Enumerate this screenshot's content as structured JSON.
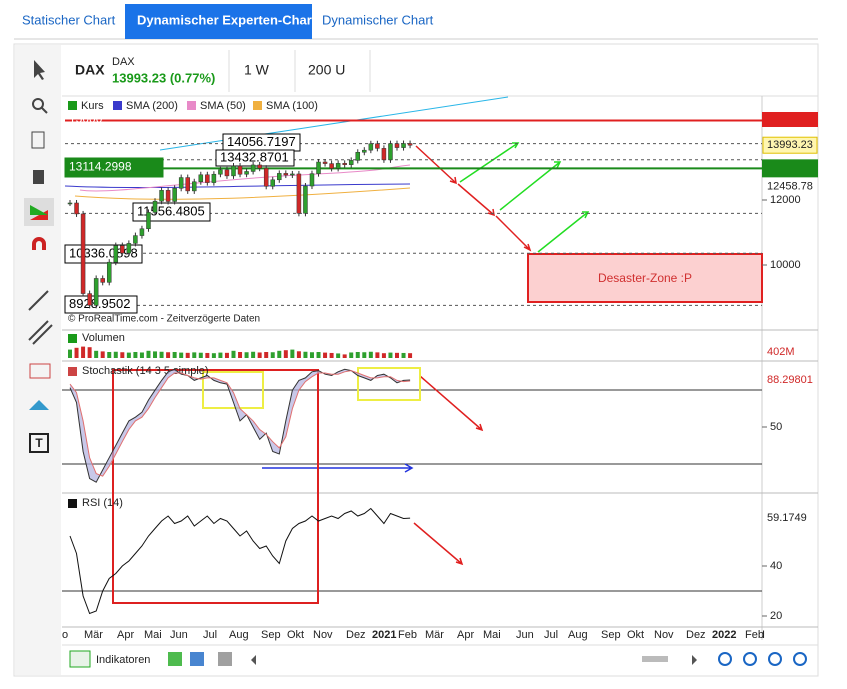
{
  "tabs": [
    "Statischer Chart",
    "Dynamischer Experten-Chart",
    "Dynamischer Chart"
  ],
  "header": {
    "symbol": "DAX",
    "name": "DAX",
    "quote": "13993.23 (0.77%)",
    "period": "1 W",
    "units": "200 U"
  },
  "price_panel": {
    "legend": [
      "Kurs",
      "SMA (200)",
      "SMA (50)",
      "SMA (100)"
    ],
    "log_scale": true,
    "yticks": [
      10000,
      12000
    ],
    "levels": [
      "15000",
      "14056.7197",
      "13432.8701",
      "13114.2998",
      "11556.4805",
      "10336.0898",
      "8928.9502"
    ],
    "right_labels": [
      "13993.23",
      "12458.78"
    ],
    "closes": [
      11900,
      11540,
      9230,
      8930,
      9630,
      9525,
      10080,
      10560,
      10340,
      10625,
      10860,
      11070,
      11590,
      11960,
      12330,
      11950,
      12400,
      12780,
      12310,
      12630,
      12880,
      12600,
      12900,
      13060,
      12840,
      13200,
      12900,
      13000,
      13240,
      13120,
      12470,
      12700,
      12930,
      12870,
      12910,
      11560,
      12480,
      12920,
      13350,
      13290,
      13110,
      13300,
      13250,
      13410,
      13720,
      13800,
      14050,
      13870,
      13430,
      14056,
      13900,
      14060,
      13993
    ],
    "annotation": "Desaster-Zone :P",
    "credit": "© ProRealTime.com - Zeitverzögerte Daten"
  },
  "volume_panel": {
    "title": "Volumen",
    "last": "402M",
    "values": [
      700,
      850,
      950,
      900,
      600,
      550,
      500,
      520,
      480,
      450,
      500,
      460,
      600,
      550,
      520,
      480,
      500,
      450,
      430,
      470,
      440,
      420,
      400,
      450,
      430,
      600,
      500,
      480,
      520,
      460,
      500,
      480,
      600,
      650,
      700,
      560,
      520,
      480,
      500,
      450,
      420,
      380,
      300,
      460,
      500,
      480,
      520,
      470,
      400,
      450,
      430,
      420,
      402
    ]
  },
  "stoch_panel": {
    "title": "Stochastik (14 3 5 simple)",
    "last": "88.29801",
    "yticks": [
      50
    ],
    "k": [
      82,
      70,
      30,
      8,
      5,
      15,
      25,
      35,
      45,
      55,
      58,
      62,
      72,
      80,
      88,
      95,
      97,
      93,
      92,
      88,
      90,
      92,
      88,
      86,
      85,
      70,
      55,
      60,
      50,
      40,
      45,
      30,
      28,
      55,
      80,
      88,
      90,
      95,
      96,
      93,
      92,
      95,
      97,
      96,
      92,
      90,
      88,
      92,
      93,
      90,
      86,
      88,
      88.3
    ],
    "d": [
      85,
      78,
      55,
      25,
      12,
      10,
      18,
      28,
      38,
      48,
      55,
      58,
      65,
      74,
      82,
      90,
      94,
      94,
      92,
      90,
      89,
      90,
      90,
      88,
      86,
      78,
      65,
      60,
      55,
      48,
      44,
      38,
      33,
      42,
      65,
      80,
      87,
      91,
      94,
      94,
      93,
      93,
      95,
      96,
      94,
      92,
      90,
      90,
      91,
      91,
      88,
      87,
      87.5
    ]
  },
  "rsi_panel": {
    "title": "RSI (14)",
    "last": "59.1749",
    "yticks": [
      40,
      20
    ],
    "values": [
      52,
      45,
      28,
      21,
      22,
      30,
      35,
      37,
      40,
      42,
      45,
      48,
      52,
      55,
      58,
      60,
      57,
      58,
      60,
      56,
      58,
      60,
      57,
      59,
      58,
      55,
      52,
      54,
      50,
      47,
      48,
      44,
      41,
      50,
      55,
      57,
      58,
      60,
      58,
      59,
      60,
      59,
      61,
      62,
      60,
      61,
      63,
      60,
      57,
      61,
      60,
      59,
      59.17
    ]
  },
  "months": [
    "o",
    "Mär",
    "Apr",
    "Mai",
    "Jun",
    "Jul",
    "Aug",
    "Sep",
    "Okt",
    "Nov",
    "Dez",
    "2021",
    "Feb",
    "Mär",
    "Apr",
    "Mai",
    "Jun",
    "Jul",
    "Aug",
    "Sep",
    "Okt",
    "Nov",
    "Dez",
    "2022",
    "Feb",
    "I"
  ],
  "footer": {
    "indicators": "Indikatoren"
  }
}
